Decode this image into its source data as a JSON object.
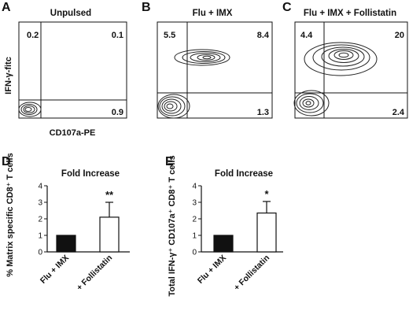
{
  "panels": {
    "A": {
      "letter": "A",
      "title": "Unpulsed",
      "quadrants": {
        "ul": "0.2",
        "ur": "0.1",
        "lr": "0.9"
      }
    },
    "B": {
      "letter": "B",
      "title": "Flu + IMX",
      "quadrants": {
        "ul": "5.5",
        "ur": "8.4",
        "lr": "1.3"
      }
    },
    "C": {
      "letter": "C",
      "title": "Flu + IMX + Follistatin",
      "quadrants": {
        "ul": "4.4",
        "ur": "20",
        "lr": "2.4"
      }
    },
    "D": {
      "letter": "D"
    },
    "E": {
      "letter": "E"
    }
  },
  "flow_axes": {
    "ylabel": "IFN-γ-fitc",
    "xlabel": "CD107a-PE"
  },
  "colors": {
    "control_bar": "#111111",
    "treated_bar": "#ffffff",
    "ink": "#111111"
  },
  "chart_data": [
    {
      "panel": "D",
      "type": "bar",
      "title": "Fold Increase",
      "ylabel": "% Matrix specific CD8⁺ T cells",
      "categories": [
        "Flu + IMX",
        "+ Follistatin"
      ],
      "values": [
        1.0,
        2.1
      ],
      "errors": [
        0,
        0.9
      ],
      "significance": [
        "",
        "**"
      ],
      "ylim": [
        0,
        4
      ],
      "yticks": [
        "0",
        "1",
        "2",
        "3",
        "4"
      ],
      "grid": false
    },
    {
      "panel": "E",
      "type": "bar",
      "title": "Fold Increase",
      "ylabel": "Total IFN-γ⁺ CD107a⁺ CD8⁺ T cells",
      "categories": [
        "Flu + IMX",
        "+ Follistatin"
      ],
      "values": [
        1.0,
        2.35
      ],
      "errors": [
        0,
        0.7
      ],
      "significance": [
        "",
        "*"
      ],
      "ylim": [
        0,
        4
      ],
      "yticks": [
        "0",
        "1",
        "2",
        "3",
        "4"
      ],
      "grid": false
    }
  ]
}
